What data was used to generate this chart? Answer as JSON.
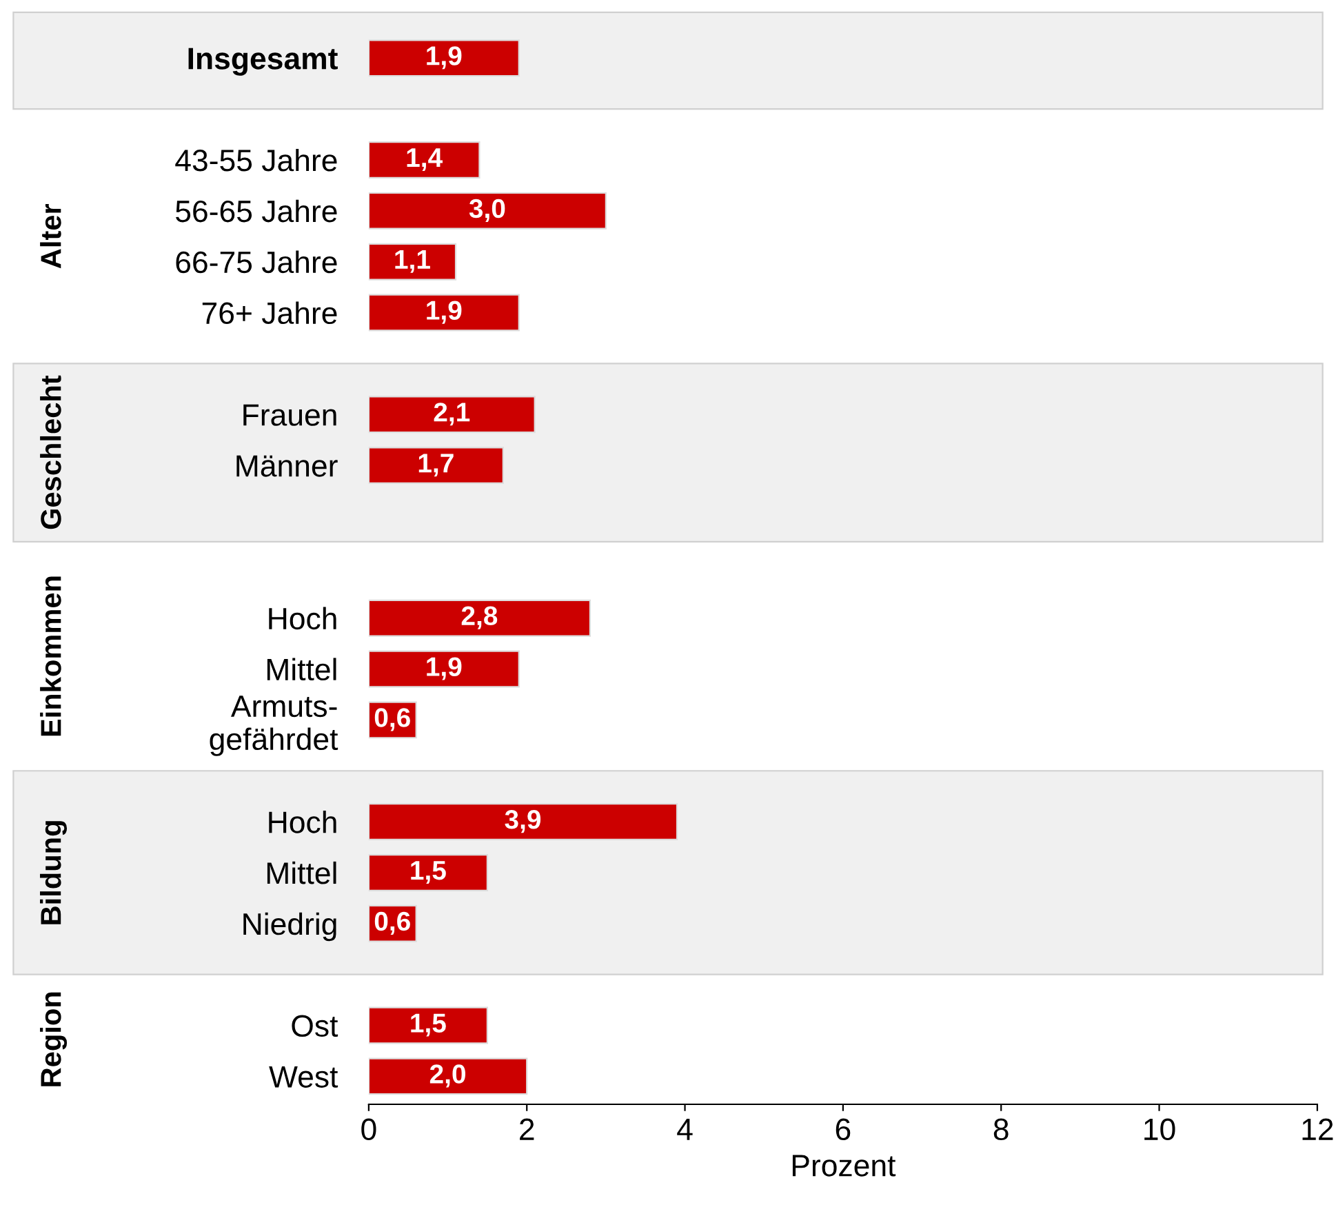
{
  "chart_data": {
    "type": "bar",
    "orientation": "horizontal",
    "xlabel": "Prozent",
    "categories": [
      "Insgesamt",
      null,
      "43-55 Jahre",
      "56-65 Jahre",
      "66-75 Jahre",
      "76+ Jahre",
      null,
      "Frauen",
      "Männer",
      null,
      null,
      "Hoch",
      "Mittel",
      "Armuts-\ngefährdet",
      null,
      "Hoch",
      "Mittel",
      "Niedrig",
      null,
      "Ost",
      "West"
    ],
    "values": [
      1.9,
      null,
      1.4,
      3.0,
      1.1,
      1.9,
      null,
      2.1,
      1.7,
      null,
      null,
      2.8,
      1.9,
      0.6,
      null,
      3.9,
      1.5,
      0.6,
      null,
      1.5,
      2.0
    ],
    "value_labels": [
      "1,9",
      null,
      "1,4",
      "3,0",
      "1,1",
      "1,9",
      null,
      "2,1",
      "1,7",
      null,
      null,
      "2,8",
      "1,9",
      "0,6",
      null,
      "3,9",
      "1,5",
      "0,6",
      null,
      "1,5",
      "2,0"
    ],
    "color": "#cc0000",
    "xlim": [
      0,
      12
    ],
    "xticks": [
      0,
      2,
      4,
      6,
      8,
      10,
      12
    ],
    "annotations": [
      "Alter",
      "Geschlecht",
      "Einkommen",
      "Bildung",
      "Region"
    ]
  }
}
